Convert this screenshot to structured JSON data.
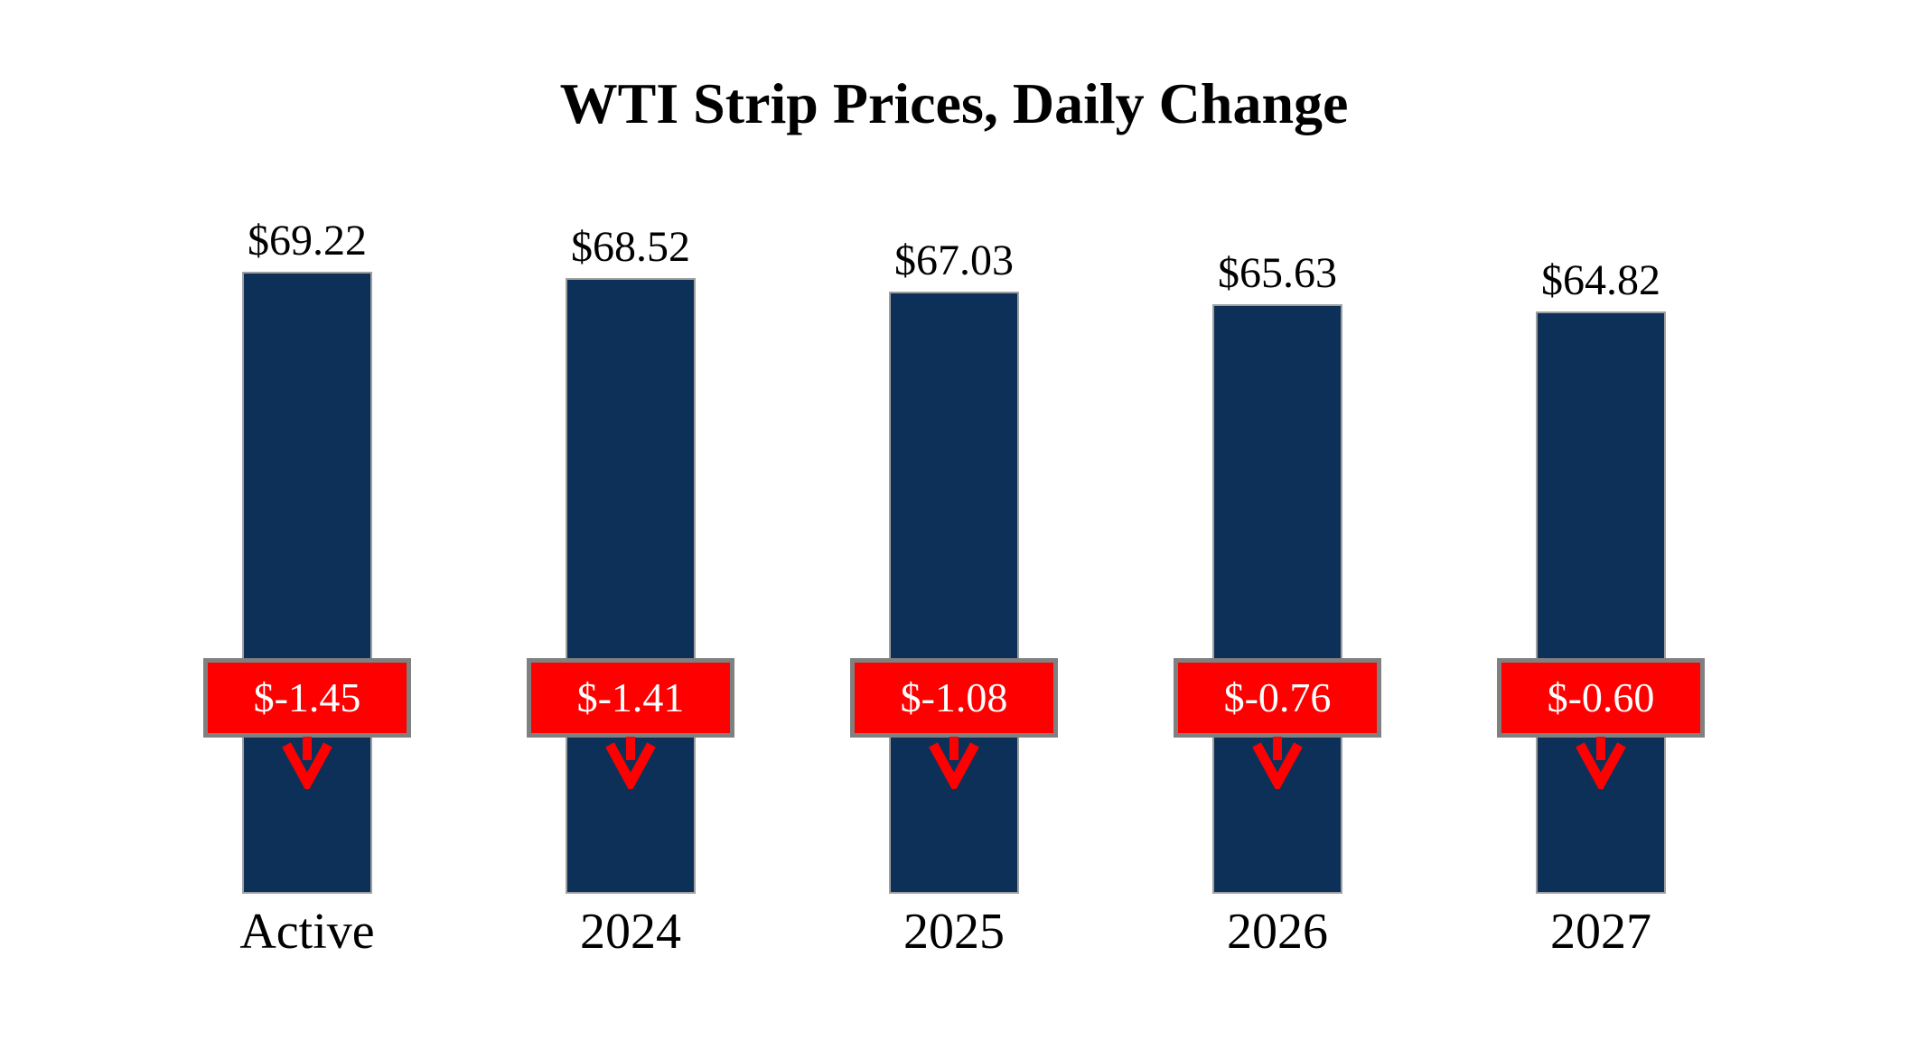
{
  "title": "WTI Strip Prices, Daily Change",
  "chart_data": {
    "type": "bar",
    "title": "WTI Strip Prices, Daily Change",
    "categories": [
      "Active",
      "2024",
      "2025",
      "2026",
      "2027"
    ],
    "series": [
      {
        "name": "Strip Price",
        "values": [
          69.22,
          68.52,
          67.03,
          65.63,
          64.82
        ],
        "labels": [
          "$69.22",
          "$68.52",
          "$67.03",
          "$65.63",
          "$64.82"
        ]
      },
      {
        "name": "Daily Change",
        "values": [
          -1.45,
          -1.41,
          -1.08,
          -0.76,
          -0.6
        ],
        "labels": [
          "$-1.45",
          "$-1.41",
          "$-1.08",
          "$-0.76",
          "$-0.60"
        ]
      }
    ],
    "xlabel": "",
    "ylabel": "",
    "ylim": [
      0,
      70
    ],
    "grid": false,
    "legend": "none",
    "annotations": "red boxes with white daily-change values and red down arrows overlaid mid-bar",
    "colors": {
      "bar_fill": "#0d3059",
      "bar_border": "#a0a0a0",
      "change_box_fill": "#ff0000",
      "change_box_border": "#808080",
      "change_text": "#ffffff",
      "arrow": "#ff0000",
      "text": "#000000",
      "background": "#ffffff"
    }
  }
}
